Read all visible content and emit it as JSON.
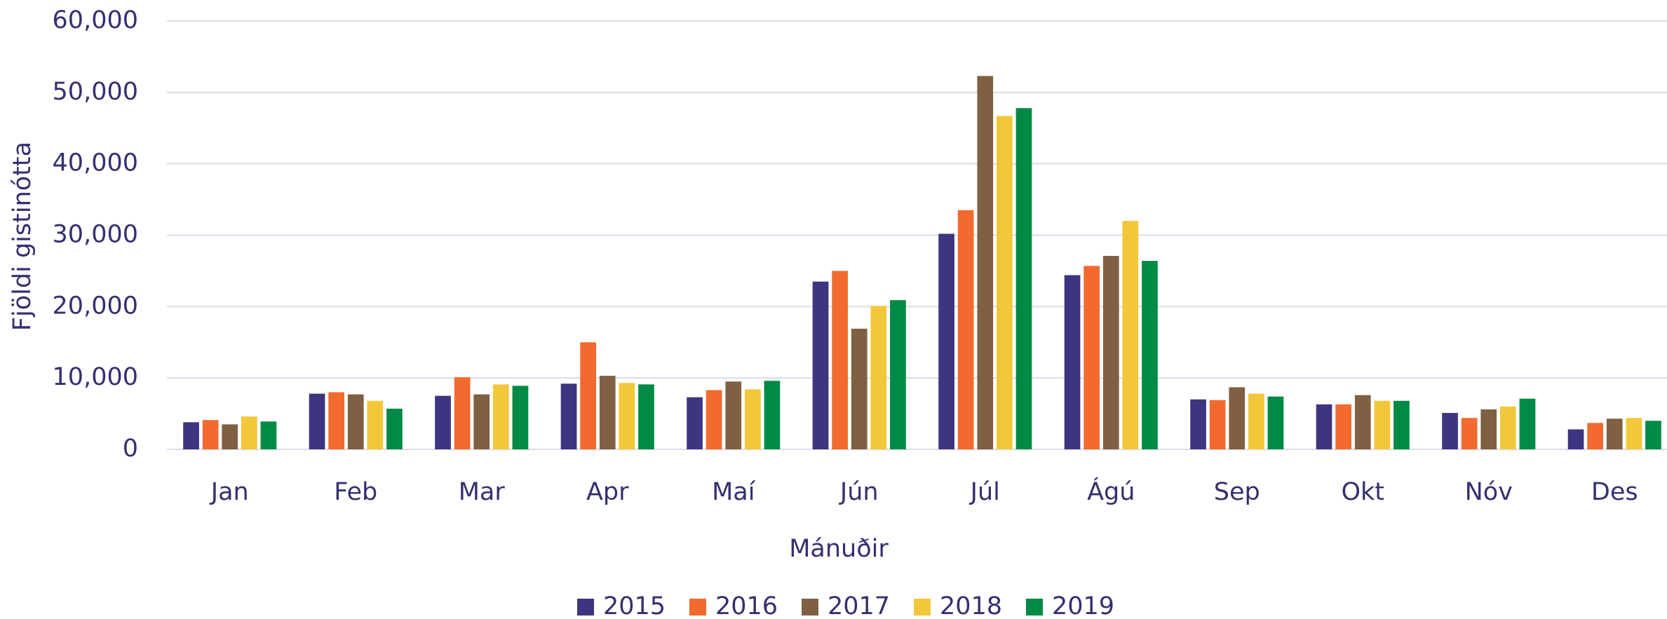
{
  "chart_data": {
    "type": "bar",
    "x_label": "Mánuðir",
    "y_label": "Fjöldi gistinótta",
    "categories": [
      "Jan",
      "Feb",
      "Mar",
      "Apr",
      "Maí",
      "Jún",
      "Júl",
      "Ágú",
      "Sep",
      "Okt",
      "Nóv",
      "Des"
    ],
    "series": [
      {
        "name": "2015",
        "color": "#3d3580",
        "values": [
          3800,
          7800,
          7500,
          9200,
          7300,
          23500,
          30200,
          24400,
          7000,
          6300,
          5100,
          2800
        ]
      },
      {
        "name": "2016",
        "color": "#f26a2e",
        "values": [
          4100,
          8000,
          10100,
          15000,
          8300,
          25000,
          33500,
          25700,
          6900,
          6300,
          4400,
          3700
        ]
      },
      {
        "name": "2017",
        "color": "#7f6042",
        "values": [
          3500,
          7700,
          7700,
          10300,
          9500,
          16900,
          52300,
          27100,
          8700,
          7600,
          5600,
          4300
        ]
      },
      {
        "name": "2018",
        "color": "#f2c83a",
        "values": [
          4600,
          6800,
          9100,
          9300,
          8400,
          20100,
          46700,
          32000,
          7800,
          6800,
          6000,
          4400
        ]
      },
      {
        "name": "2019",
        "color": "#008a45",
        "values": [
          3900,
          5700,
          8900,
          9100,
          9600,
          20900,
          47800,
          26400,
          7400,
          6800,
          7100,
          4000
        ]
      }
    ],
    "ylim": [
      0,
      60000
    ],
    "yticks": [
      0,
      {
        "value": 10000,
        "label": "10,000"
      },
      {
        "value": 20000,
        "label": "20,000"
      },
      {
        "value": 30000,
        "label": "30,000"
      },
      {
        "value": 40000,
        "label": "40,000"
      },
      {
        "value": 50000,
        "label": "50,000"
      },
      {
        "value": 60000,
        "label": "60,000"
      }
    ],
    "grid": true,
    "legend": "bottom"
  }
}
